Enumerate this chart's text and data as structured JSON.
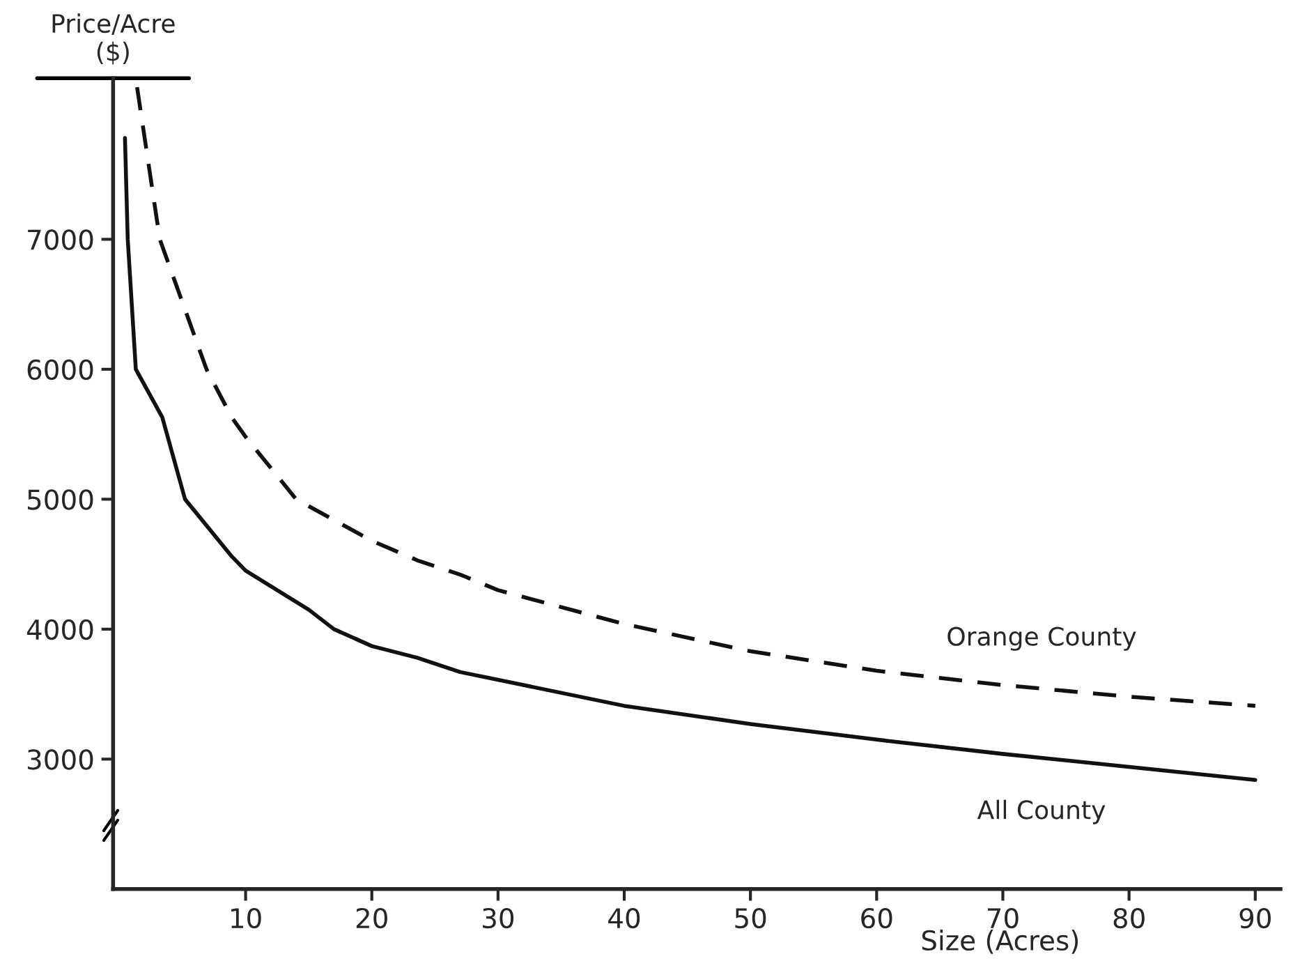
{
  "chart_data": {
    "type": "line",
    "xlabel": "Size (Acres)",
    "ylabel": "Price/Acre\n($)",
    "xlim": [
      -0.5,
      92
    ],
    "ylim": [
      2000,
      8240
    ],
    "xticks": [
      10,
      20,
      30,
      40,
      50,
      60,
      70,
      80,
      90
    ],
    "yticks": [
      3000,
      4000,
      5000,
      6000,
      7000
    ],
    "grid": false,
    "legend": false,
    "series": [
      {
        "name": "Orange County",
        "color": "#111111",
        "line_style": "dashed",
        "x": [
          1.4,
          3.2,
          6.9,
          8.9,
          10,
          14,
          20,
          23.6,
          27,
          30,
          40,
          50,
          60,
          70,
          80,
          90
        ],
        "values": [
          8170,
          7000,
          6000,
          5630,
          5480,
          5000,
          4680,
          4530,
          4420,
          4300,
          4040,
          3830,
          3680,
          3570,
          3480,
          3410
        ]
      },
      {
        "name": "All County",
        "color": "#111111",
        "line_style": "solid",
        "x": [
          0.44,
          0.66,
          1.3,
          3.4,
          5.2,
          8.9,
          10,
          15,
          17,
          20,
          23.6,
          27,
          30,
          40,
          50,
          60,
          70,
          80,
          90
        ],
        "values": [
          7780,
          7000,
          6000,
          5630,
          5000,
          4560,
          4450,
          4150,
          4000,
          3870,
          3780,
          3670,
          3610,
          3410,
          3270,
          3150,
          3040,
          2940,
          2840
        ]
      }
    ]
  }
}
